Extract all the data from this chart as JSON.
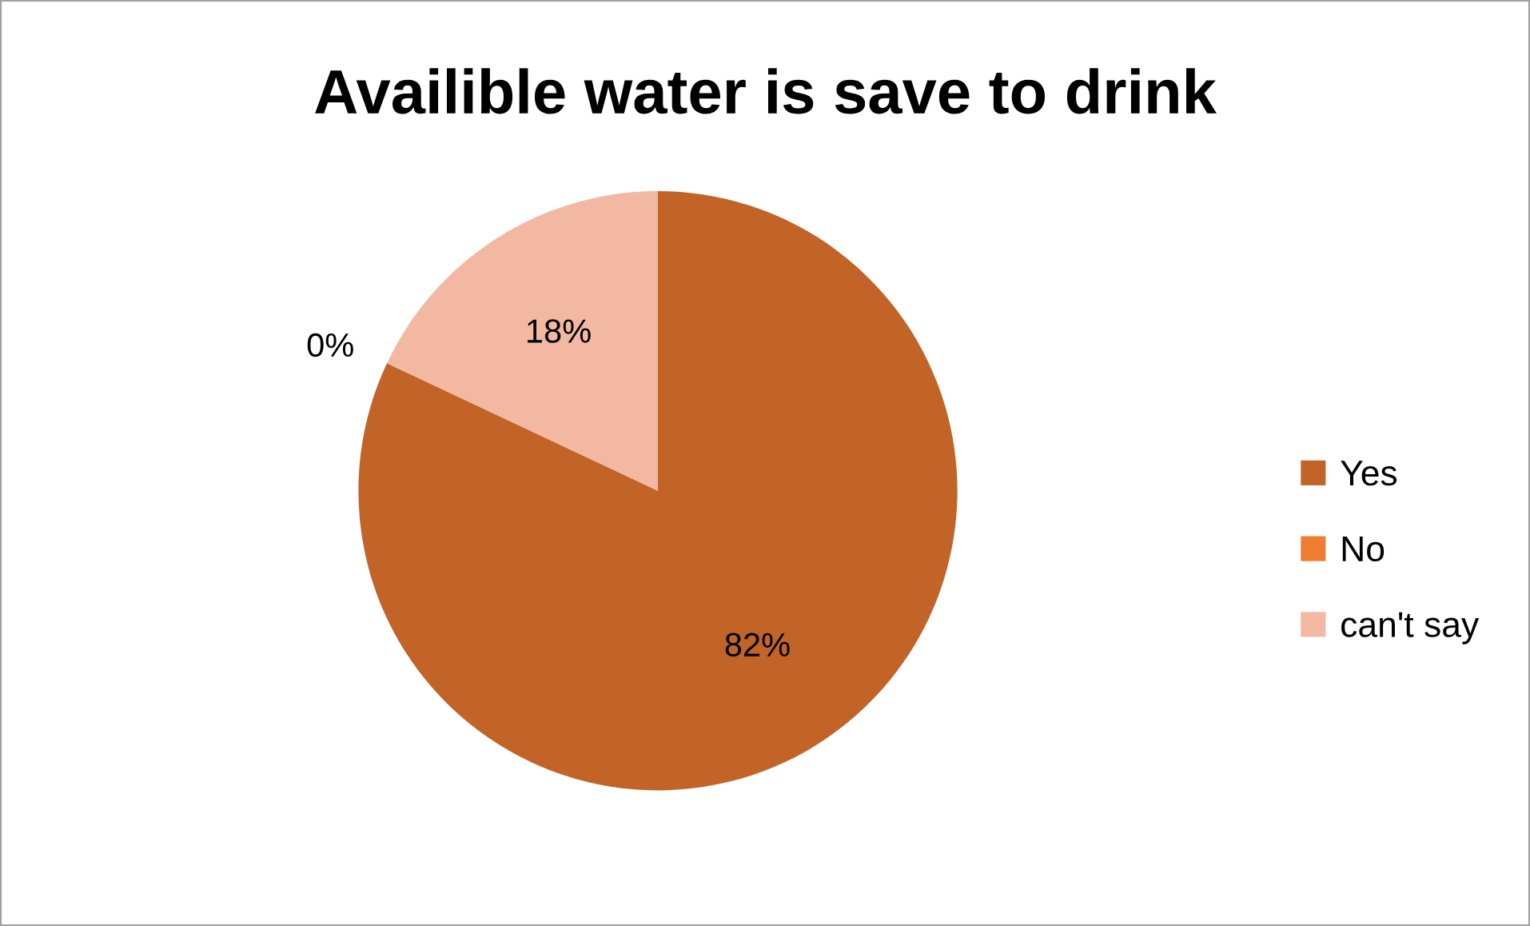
{
  "chart_data": {
    "type": "pie",
    "title": "Availible water is save to drink",
    "categories": [
      "Yes",
      "No",
      "can't say"
    ],
    "values": [
      82,
      0,
      18
    ],
    "value_labels": [
      "82%",
      "0%",
      "18%"
    ],
    "colors": [
      "#c26428",
      "#ed7d31",
      "#f2b8a2"
    ],
    "legend": "right"
  }
}
